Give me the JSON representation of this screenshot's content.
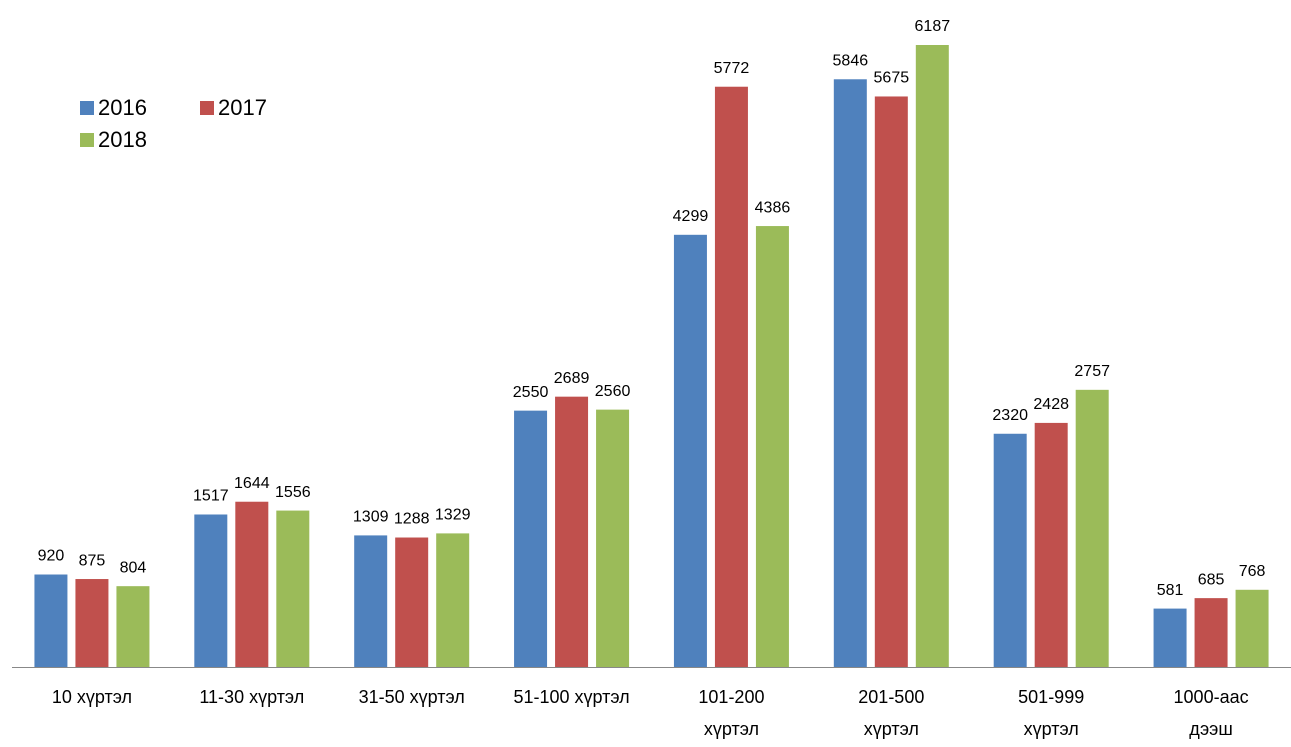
{
  "chart_data": {
    "type": "bar",
    "categories": [
      "10 хүртэл",
      "11-30 хүртэл",
      "31-50 хүртэл",
      "51-100 хүртэл",
      "101-200\nхүртэл",
      "201-500\nхүртэл",
      "501-999\nхүртэл",
      "1000-аас\nдээш"
    ],
    "series": [
      {
        "name": "2016",
        "color": "#4f81bd",
        "values": [
          920,
          1517,
          1309,
          2550,
          4299,
          5846,
          2320,
          581
        ]
      },
      {
        "name": "2017",
        "color": "#c0504d",
        "values": [
          875,
          1644,
          1288,
          2689,
          5772,
          5675,
          2428,
          685
        ]
      },
      {
        "name": "2018",
        "color": "#9bbb59",
        "values": [
          804,
          1556,
          1329,
          2560,
          4386,
          6187,
          2757,
          768
        ]
      }
    ],
    "legend": "top-left"
  }
}
